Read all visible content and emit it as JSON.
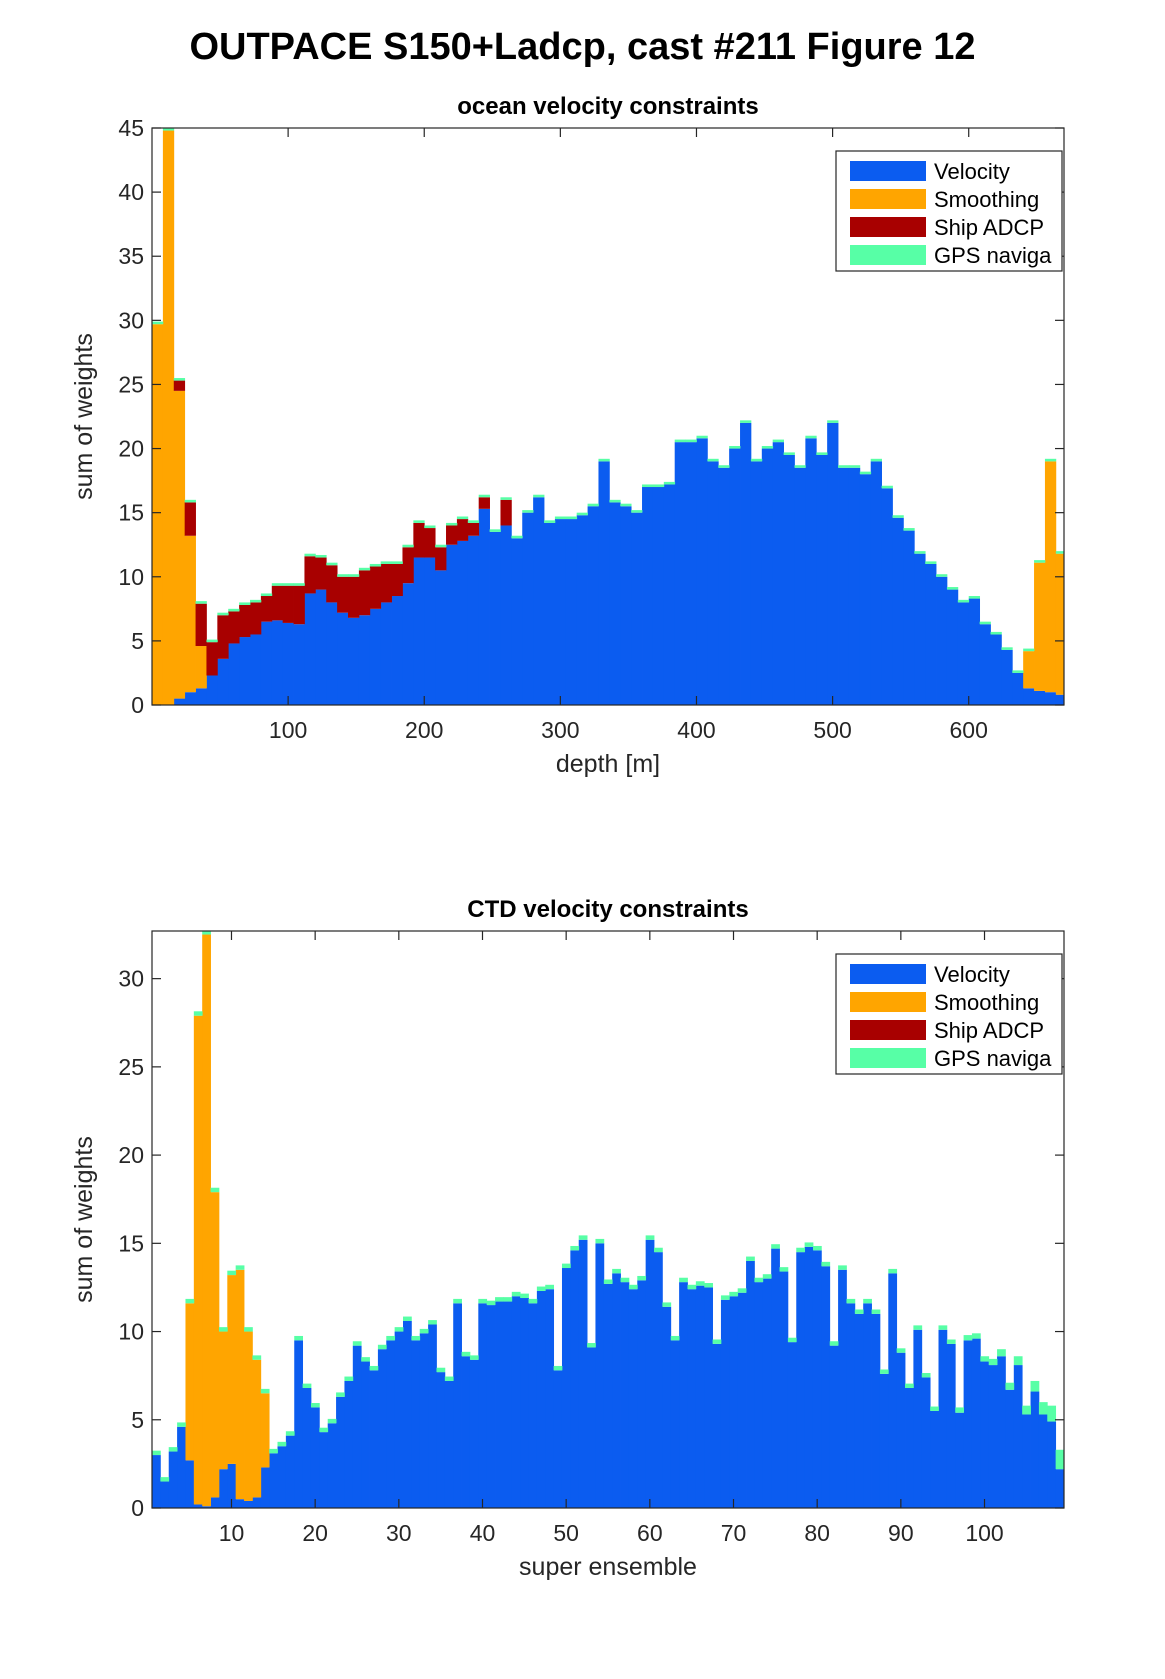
{
  "figure": {
    "title": "OUTPACE S150+Ladcp, cast #211  Figure 12"
  },
  "colors": {
    "velocity": "#0b5cf0",
    "smoothing": "#ffa500",
    "ship_adcp": "#a80000",
    "gps_navigation": "#57ffa6"
  },
  "chart_data": [
    {
      "type": "bar",
      "stacked": true,
      "title": "ocean velocity constraints",
      "xlabel": "depth [m]",
      "ylabel": "sum of weights",
      "xlim": [
        0,
        670
      ],
      "ylim": [
        0,
        45
      ],
      "xticks": [
        100,
        200,
        300,
        400,
        500,
        600
      ],
      "yticks": [
        0,
        5,
        10,
        15,
        20,
        25,
        30,
        35,
        40,
        45
      ],
      "bar_width": 8,
      "grid": false,
      "legend_position": "top-right",
      "x": [
        4,
        12,
        20,
        28,
        36,
        44,
        52,
        60,
        68,
        76,
        84,
        92,
        100,
        108,
        116,
        124,
        132,
        140,
        148,
        156,
        164,
        172,
        180,
        188,
        196,
        204,
        212,
        220,
        228,
        236,
        244,
        252,
        260,
        268,
        276,
        284,
        292,
        300,
        308,
        316,
        324,
        332,
        340,
        348,
        356,
        364,
        372,
        380,
        388,
        396,
        404,
        412,
        420,
        428,
        436,
        444,
        452,
        460,
        468,
        476,
        484,
        492,
        500,
        508,
        516,
        524,
        532,
        540,
        548,
        556,
        564,
        572,
        580,
        588,
        596,
        604,
        612,
        620,
        628,
        636,
        644,
        652,
        660,
        668
      ],
      "series": [
        {
          "name": "Velocity",
          "values": [
            0,
            0,
            0.5,
            1.0,
            1.3,
            2.3,
            3.6,
            4.8,
            5.3,
            5.5,
            6.5,
            6.6,
            6.4,
            6.3,
            8.7,
            9.0,
            8.0,
            7.2,
            6.8,
            7.0,
            7.5,
            8.0,
            8.5,
            9.5,
            11.5,
            11.5,
            10.5,
            12.5,
            12.8,
            13.2,
            15.3,
            13.5,
            14.0,
            13.0,
            15.0,
            16.2,
            14.2,
            14.5,
            14.5,
            14.8,
            15.5,
            19.0,
            15.8,
            15.5,
            15.0,
            17.0,
            17.0,
            17.2,
            20.5,
            20.5,
            20.8,
            19.0,
            18.5,
            20.0,
            22.0,
            19.0,
            20.0,
            20.5,
            19.5,
            18.5,
            20.8,
            19.5,
            22.0,
            18.5,
            18.5,
            18.0,
            19.0,
            16.9,
            14.6,
            13.6,
            11.8,
            11.0,
            10.0,
            9.0,
            8.0,
            8.3,
            6.3,
            5.5,
            4.3,
            2.5,
            1.3,
            1.1,
            1.0,
            0.8
          ]
        },
        {
          "name": "Smoothing",
          "values": [
            29.7,
            44.8,
            24.0,
            12.2,
            3.3,
            0,
            0,
            0,
            0,
            0,
            0,
            0,
            0,
            0,
            0,
            0,
            0,
            0,
            0,
            0,
            0,
            0,
            0,
            0,
            0,
            0,
            0,
            0,
            0,
            0,
            0,
            0,
            0,
            0,
            0,
            0,
            0,
            0,
            0,
            0,
            0,
            0,
            0,
            0,
            0,
            0,
            0,
            0,
            0,
            0,
            0,
            0,
            0,
            0,
            0,
            0,
            0,
            0,
            0,
            0,
            0,
            0,
            0,
            0,
            0,
            0,
            0,
            0,
            0,
            0,
            0,
            0,
            0,
            0,
            0,
            0,
            0,
            0,
            0,
            0,
            2.9,
            10.0,
            18.0,
            11.0
          ]
        },
        {
          "name": "Ship ADCP",
          "values": [
            0,
            0,
            0.8,
            2.6,
            3.3,
            2.6,
            3.4,
            2.5,
            2.5,
            2.5,
            2.0,
            2.7,
            2.9,
            3.0,
            2.9,
            2.5,
            2.9,
            2.8,
            3.2,
            3.5,
            3.3,
            3.0,
            2.5,
            2.8,
            2.7,
            2.3,
            1.8,
            1.5,
            1.7,
            1.0,
            0.9,
            0,
            2.0,
            0,
            0,
            0,
            0,
            0,
            0,
            0,
            0,
            0,
            0,
            0,
            0,
            0,
            0,
            0,
            0,
            0,
            0,
            0,
            0,
            0,
            0,
            0,
            0,
            0,
            0,
            0,
            0,
            0,
            0,
            0,
            0,
            0,
            0,
            0,
            0,
            0,
            0,
            0,
            0,
            0,
            0,
            0,
            0,
            0,
            0,
            0,
            0,
            0,
            0,
            0
          ]
        },
        {
          "name": "GPS naviga",
          "values": [
            0.2,
            0.2,
            0.2,
            0.2,
            0.2,
            0.2,
            0.2,
            0.2,
            0.2,
            0.2,
            0.2,
            0.2,
            0.2,
            0.2,
            0.2,
            0.2,
            0.2,
            0.2,
            0.2,
            0.2,
            0.2,
            0.2,
            0.2,
            0.2,
            0.2,
            0.2,
            0.2,
            0.2,
            0.2,
            0.2,
            0.2,
            0.2,
            0.2,
            0.2,
            0.2,
            0.2,
            0.2,
            0.2,
            0.2,
            0.2,
            0.2,
            0.2,
            0.2,
            0.2,
            0.2,
            0.2,
            0.2,
            0.2,
            0.2,
            0.2,
            0.2,
            0.2,
            0.2,
            0.2,
            0.2,
            0.2,
            0.2,
            0.2,
            0.2,
            0.2,
            0.2,
            0.2,
            0.2,
            0.2,
            0.2,
            0.2,
            0.2,
            0.2,
            0.2,
            0.2,
            0.2,
            0.2,
            0.2,
            0.2,
            0.2,
            0.2,
            0.2,
            0.2,
            0.2,
            0.2,
            0.2,
            0.2,
            0.2,
            0.2
          ]
        }
      ]
    },
    {
      "type": "bar",
      "stacked": true,
      "title": "CTD velocity constraints",
      "xlabel": "super ensemble",
      "ylabel": "sum of weights",
      "xlim": [
        0.5,
        109.5
      ],
      "ylim": [
        0,
        32.7
      ],
      "xticks": [
        10,
        20,
        30,
        40,
        50,
        60,
        70,
        80,
        90,
        100
      ],
      "yticks": [
        0,
        5,
        10,
        15,
        20,
        25,
        30
      ],
      "bar_width": 1,
      "grid": false,
      "legend_position": "top-right",
      "x": [
        1,
        2,
        3,
        4,
        5,
        6,
        7,
        8,
        9,
        10,
        11,
        12,
        13,
        14,
        15,
        16,
        17,
        18,
        19,
        20,
        21,
        22,
        23,
        24,
        25,
        26,
        27,
        28,
        29,
        30,
        31,
        32,
        33,
        34,
        35,
        36,
        37,
        38,
        39,
        40,
        41,
        42,
        43,
        44,
        45,
        46,
        47,
        48,
        49,
        50,
        51,
        52,
        53,
        54,
        55,
        56,
        57,
        58,
        59,
        60,
        61,
        62,
        63,
        64,
        65,
        66,
        67,
        68,
        69,
        70,
        71,
        72,
        73,
        74,
        75,
        76,
        77,
        78,
        79,
        80,
        81,
        82,
        83,
        84,
        85,
        86,
        87,
        88,
        89,
        90,
        91,
        92,
        93,
        94,
        95,
        96,
        97,
        98,
        99,
        100,
        101,
        102,
        103,
        104,
        105,
        106,
        107,
        108,
        109
      ],
      "series": [
        {
          "name": "Velocity",
          "values": [
            3.0,
            1.5,
            3.2,
            4.6,
            2.7,
            0.2,
            0.1,
            0.6,
            2.2,
            2.5,
            0.5,
            0.4,
            0.6,
            2.3,
            3.1,
            3.5,
            4.1,
            9.5,
            6.8,
            5.7,
            4.3,
            4.8,
            6.3,
            7.2,
            9.2,
            8.3,
            7.8,
            9.0,
            9.5,
            10.0,
            10.6,
            9.5,
            9.9,
            10.4,
            7.7,
            7.2,
            11.6,
            8.6,
            8.4,
            11.6,
            11.5,
            11.7,
            11.7,
            12.0,
            11.9,
            11.6,
            12.3,
            12.4,
            7.8,
            13.6,
            14.6,
            15.2,
            9.1,
            15.0,
            12.7,
            13.3,
            12.8,
            12.4,
            12.9,
            15.2,
            14.5,
            11.4,
            9.5,
            12.8,
            12.4,
            12.6,
            12.5,
            9.3,
            11.8,
            12.0,
            12.2,
            14.0,
            12.8,
            13.0,
            14.7,
            13.4,
            9.4,
            14.5,
            14.8,
            14.6,
            13.7,
            9.2,
            13.5,
            11.6,
            11.0,
            11.6,
            11.0,
            7.6,
            13.3,
            8.8,
            6.8,
            10.1,
            7.4,
            5.5,
            10.1,
            9.3,
            5.4,
            9.5,
            9.6,
            8.3,
            8.1,
            8.6,
            6.7,
            8.1,
            5.3,
            6.6,
            5.3,
            4.9,
            2.2
          ]
        },
        {
          "name": "Smoothing",
          "values": [
            0,
            0,
            0,
            0,
            8.9,
            27.7,
            32.4,
            17.3,
            7.8,
            10.7,
            13.0,
            9.6,
            7.8,
            4.2,
            0,
            0,
            0,
            0,
            0,
            0,
            0,
            0,
            0,
            0,
            0,
            0,
            0,
            0,
            0,
            0,
            0,
            0,
            0,
            0,
            0,
            0,
            0,
            0,
            0,
            0,
            0,
            0,
            0,
            0,
            0,
            0,
            0,
            0,
            0,
            0,
            0,
            0,
            0,
            0,
            0,
            0,
            0,
            0,
            0,
            0,
            0,
            0,
            0,
            0,
            0,
            0,
            0,
            0,
            0,
            0,
            0,
            0,
            0,
            0,
            0,
            0,
            0,
            0,
            0,
            0,
            0,
            0,
            0,
            0,
            0,
            0,
            0,
            0,
            0,
            0,
            0,
            0,
            0,
            0,
            0,
            0,
            0,
            0,
            0,
            0,
            0,
            0,
            0,
            0,
            0,
            0,
            0,
            0,
            0
          ]
        },
        {
          "name": "Ship ADCP",
          "values": [
            0,
            0,
            0,
            0,
            0,
            0,
            0,
            0,
            0,
            0,
            0,
            0,
            0,
            0,
            0,
            0,
            0,
            0,
            0,
            0,
            0,
            0,
            0,
            0,
            0,
            0,
            0,
            0,
            0,
            0,
            0,
            0,
            0,
            0,
            0,
            0,
            0,
            0,
            0,
            0,
            0,
            0,
            0,
            0,
            0,
            0,
            0,
            0,
            0,
            0,
            0,
            0,
            0,
            0,
            0,
            0,
            0,
            0,
            0,
            0,
            0,
            0,
            0,
            0,
            0,
            0,
            0,
            0,
            0,
            0,
            0,
            0,
            0,
            0,
            0,
            0,
            0,
            0,
            0,
            0,
            0,
            0,
            0,
            0,
            0,
            0,
            0,
            0,
            0,
            0,
            0,
            0,
            0,
            0,
            0,
            0,
            0,
            0,
            0,
            0,
            0,
            0,
            0,
            0,
            0,
            0,
            0,
            0,
            0
          ]
        },
        {
          "name": "GPS naviga",
          "values": [
            0.25,
            0.25,
            0.25,
            0.25,
            0.25,
            0.25,
            0.25,
            0.25,
            0.25,
            0.25,
            0.25,
            0.25,
            0.25,
            0.25,
            0.25,
            0.25,
            0.25,
            0.25,
            0.25,
            0.25,
            0.25,
            0.25,
            0.25,
            0.25,
            0.25,
            0.25,
            0.25,
            0.25,
            0.25,
            0.25,
            0.25,
            0.25,
            0.25,
            0.25,
            0.25,
            0.25,
            0.25,
            0.25,
            0.25,
            0.25,
            0.25,
            0.25,
            0.25,
            0.25,
            0.25,
            0.25,
            0.25,
            0.25,
            0.25,
            0.25,
            0.25,
            0.25,
            0.25,
            0.25,
            0.25,
            0.25,
            0.25,
            0.25,
            0.25,
            0.25,
            0.25,
            0.25,
            0.25,
            0.25,
            0.25,
            0.25,
            0.25,
            0.25,
            0.25,
            0.25,
            0.25,
            0.25,
            0.25,
            0.25,
            0.25,
            0.25,
            0.25,
            0.25,
            0.25,
            0.25,
            0.25,
            0.25,
            0.25,
            0.25,
            0.25,
            0.25,
            0.25,
            0.25,
            0.25,
            0.25,
            0.25,
            0.25,
            0.25,
            0.25,
            0.25,
            0.25,
            0.3,
            0.3,
            0.3,
            0.3,
            0.35,
            0.4,
            0.4,
            0.5,
            0.5,
            0.6,
            0.7,
            0.9,
            1.1
          ]
        }
      ]
    }
  ]
}
